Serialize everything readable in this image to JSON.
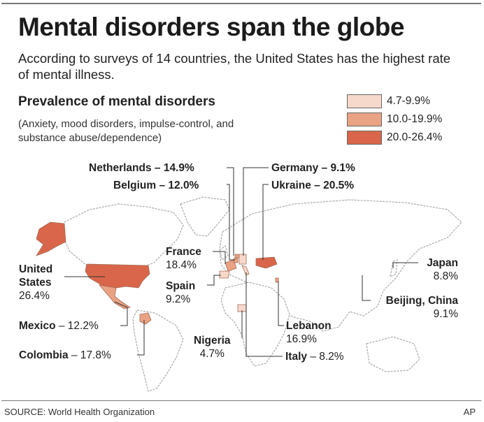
{
  "header": {
    "title": "Mental disorders span the globe",
    "subtitle": "According to surveys of 14 countries, the United States has the highest rate of mental illness."
  },
  "section": {
    "title": "Prevalence of mental disorders",
    "note": "(Anxiety, mood disorders, impulse-control, and substance abuse/dependence)"
  },
  "legend": [
    {
      "label": "4.7-9.9%",
      "color": "#f7d9cc"
    },
    {
      "label": "10.0-19.9%",
      "color": "#e9a283"
    },
    {
      "label": "20.0-26.4%",
      "color": "#d9664a"
    }
  ],
  "countries": {
    "netherlands": {
      "name": "Netherlands",
      "value": "14.9%"
    },
    "belgium": {
      "name": "Belgium",
      "value": "12.0%"
    },
    "germany": {
      "name": "Germany",
      "value": "9.1%"
    },
    "ukraine": {
      "name": "Ukraine",
      "value": "20.5%"
    },
    "france": {
      "name": "France",
      "value": "18.4%"
    },
    "spain": {
      "name": "Spain",
      "value": "9.2%"
    },
    "united_states": {
      "name_line1": "United",
      "name_line2": "States",
      "value": "26.4%"
    },
    "mexico": {
      "name": "Mexico",
      "value": "12.2%"
    },
    "colombia": {
      "name": "Colombia",
      "value": "17.8%"
    },
    "nigeria": {
      "name": "Nigeria",
      "value": "4.7%"
    },
    "lebanon": {
      "name": "Lebanon",
      "value": "16.9%"
    },
    "italy": {
      "name": "Italy",
      "value": "8.2%"
    },
    "japan": {
      "name": "Japan",
      "value": "8.8%"
    },
    "beijing": {
      "name": "Beijing, China",
      "value": "9.1%"
    }
  },
  "dash": " – ",
  "footer": {
    "source": "SOURCE: World Health Organization",
    "credit": "AP"
  }
}
